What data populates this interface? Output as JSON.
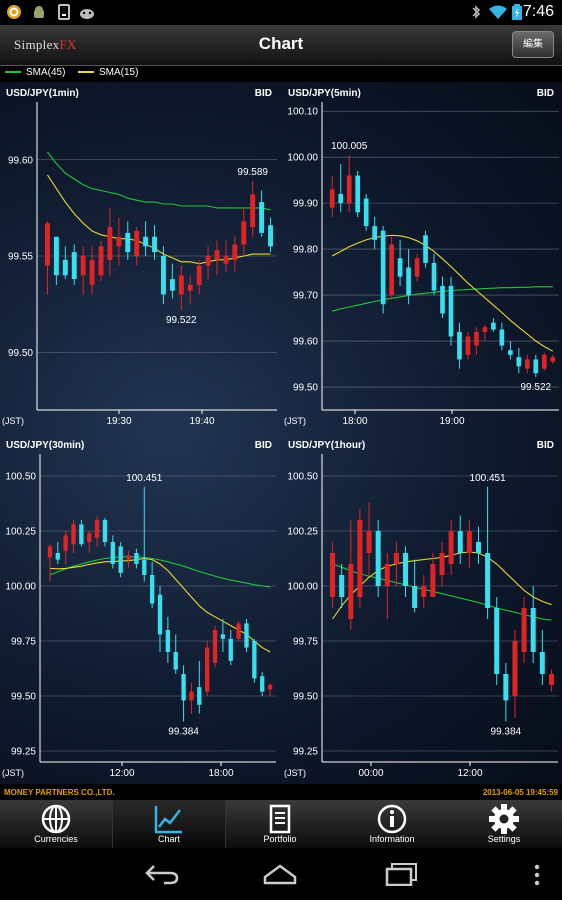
{
  "status_bar": {
    "time": "7:46"
  },
  "header": {
    "logo_main": "Simplex",
    "logo_accent": "FX",
    "title": "Chart",
    "edit_label": "編集"
  },
  "legend": [
    {
      "label": "SMA(45)",
      "color": "#22c43a"
    },
    {
      "label": "SMA(15)",
      "color": "#e8d82a"
    }
  ],
  "colors": {
    "up": "#e02424",
    "down": "#35e0f0",
    "sma45": "#22c43a",
    "sma15": "#e8d82a",
    "grid": "#8b93a6"
  },
  "charts": [
    {
      "title": "USD/JPY(1min)",
      "price_side": "BID",
      "tz_label": "(JST)",
      "y_ticks": [
        "99.60",
        "99.55",
        "99.50"
      ],
      "x_ticks": [
        "19:30",
        "19:40"
      ],
      "annotations": [
        {
          "label": "99.589"
        },
        {
          "label": "99.522"
        }
      ]
    },
    {
      "title": "USD/JPY(5min)",
      "price_side": "BID",
      "tz_label": "(JST)",
      "y_ticks": [
        "100.10",
        "100.00",
        "99.90",
        "99.80",
        "99.70",
        "99.60",
        "99.50"
      ],
      "x_ticks": [
        "18:00",
        "19:00"
      ],
      "annotations": [
        {
          "label": "100.005"
        },
        {
          "label": "99.522"
        }
      ]
    },
    {
      "title": "USD/JPY(30min)",
      "price_side": "BID",
      "tz_label": "(JST)",
      "y_ticks": [
        "100.50",
        "100.25",
        "100.00",
        "99.75",
        "99.50",
        "99.25"
      ],
      "x_ticks": [
        "12:00",
        "18:00"
      ],
      "annotations": [
        {
          "label": "100.451"
        },
        {
          "label": "99.384"
        }
      ]
    },
    {
      "title": "USD/JPY(1hour)",
      "price_side": "BID",
      "tz_label": "(JST)",
      "y_ticks": [
        "100.50",
        "100.25",
        "100.00",
        "99.75",
        "99.50",
        "99.25"
      ],
      "x_ticks": [
        "00:00",
        "12:00"
      ],
      "annotations": [
        {
          "label": "100.451"
        },
        {
          "label": "99.384"
        }
      ]
    }
  ],
  "chart_data": [
    {
      "type": "candlestick",
      "title": "USD/JPY(1min)",
      "ylim": [
        99.47,
        99.63
      ],
      "x_ticks": [
        "19:30",
        "19:40"
      ],
      "candles": [
        [
          99.545,
          99.568,
          99.53,
          99.567
        ],
        [
          99.56,
          99.56,
          99.535,
          99.54
        ],
        [
          99.548,
          99.555,
          99.538,
          99.54
        ],
        [
          99.552,
          99.556,
          99.535,
          99.538
        ],
        [
          99.54,
          99.555,
          99.53,
          99.55
        ],
        [
          99.535,
          99.555,
          99.53,
          99.548
        ],
        [
          99.54,
          99.558,
          99.537,
          99.555
        ],
        [
          99.548,
          99.575,
          99.54,
          99.565
        ],
        [
          99.555,
          99.57,
          99.545,
          99.56
        ],
        [
          99.562,
          99.568,
          99.548,
          99.552
        ],
        [
          99.55,
          99.565,
          99.545,
          99.563
        ],
        [
          99.56,
          99.568,
          99.55,
          99.555
        ],
        [
          99.56,
          99.566,
          99.548,
          99.552
        ],
        [
          99.55,
          99.555,
          99.525,
          99.53
        ],
        [
          99.538,
          99.546,
          99.528,
          99.532
        ],
        [
          99.53,
          99.545,
          99.522,
          99.54
        ],
        [
          99.532,
          99.54,
          99.525,
          99.535
        ],
        [
          99.535,
          99.548,
          99.53,
          99.545
        ],
        [
          99.545,
          99.555,
          99.538,
          99.55
        ],
        [
          99.548,
          99.558,
          99.54,
          99.553
        ],
        [
          99.546,
          99.558,
          99.542,
          99.55
        ],
        [
          99.548,
          99.56,
          99.542,
          99.556
        ],
        [
          99.556,
          99.575,
          99.55,
          99.568
        ],
        [
          99.565,
          99.589,
          99.56,
          99.582
        ],
        [
          99.578,
          99.584,
          99.56,
          99.562
        ],
        [
          99.566,
          99.57,
          99.552,
          99.555
        ]
      ],
      "sma45": [
        99.604,
        99.598,
        99.593,
        99.59,
        99.587,
        99.585,
        99.584,
        99.583,
        99.582,
        99.58,
        99.579,
        99.578,
        99.578,
        99.577,
        99.577,
        99.576,
        99.576,
        99.576,
        99.576,
        99.575,
        99.575,
        99.575,
        99.575,
        99.575,
        99.575,
        99.574
      ],
      "sma15": [
        99.592,
        99.585,
        99.578,
        99.572,
        99.567,
        99.563,
        99.561,
        99.56,
        99.559,
        99.559,
        99.558,
        99.556,
        99.554,
        99.551,
        99.549,
        99.547,
        99.547,
        99.546,
        99.547,
        99.548,
        99.548,
        99.549,
        99.55,
        99.551,
        99.551,
        99.551
      ],
      "annotation_values": [
        99.589,
        99.522
      ]
    },
    {
      "type": "candlestick",
      "title": "USD/JPY(5min)",
      "ylim": [
        99.45,
        100.12
      ],
      "x_ticks": [
        "18:00",
        "19:00"
      ],
      "candles": [
        [
          99.89,
          99.96,
          99.87,
          99.93
        ],
        [
          99.92,
          99.985,
          99.88,
          99.9
        ],
        [
          99.9,
          100.005,
          99.88,
          99.96
        ],
        [
          99.96,
          99.97,
          99.87,
          99.88
        ],
        [
          99.91,
          99.92,
          99.84,
          99.85
        ],
        [
          99.85,
          99.87,
          99.8,
          99.82
        ],
        [
          99.84,
          99.85,
          99.66,
          99.68
        ],
        [
          99.7,
          99.83,
          99.69,
          99.81
        ],
        [
          99.78,
          99.82,
          99.72,
          99.74
        ],
        [
          99.76,
          99.8,
          99.68,
          99.7
        ],
        [
          99.74,
          99.79,
          99.73,
          99.78
        ],
        [
          99.83,
          99.84,
          99.76,
          99.77
        ],
        [
          99.77,
          99.79,
          99.7,
          99.71
        ],
        [
          99.72,
          99.74,
          99.65,
          99.66
        ],
        [
          99.72,
          99.74,
          99.59,
          99.61
        ],
        [
          99.62,
          99.64,
          99.54,
          99.56
        ],
        [
          99.57,
          99.62,
          99.56,
          99.61
        ],
        [
          99.59,
          99.63,
          99.57,
          99.62
        ],
        [
          99.62,
          99.635,
          99.6,
          99.63
        ],
        [
          99.64,
          99.65,
          99.62,
          99.625
        ],
        [
          99.625,
          99.64,
          99.58,
          99.59
        ],
        [
          99.58,
          99.6,
          99.56,
          99.57
        ],
        [
          99.565,
          99.585,
          99.53,
          99.545
        ],
        [
          99.54,
          99.57,
          99.53,
          99.56
        ],
        [
          99.56,
          99.57,
          99.522,
          99.53
        ],
        [
          99.54,
          99.575,
          99.535,
          99.57
        ],
        [
          99.555,
          99.57,
          99.55,
          99.565
        ]
      ],
      "sma45": [
        99.665,
        99.67,
        99.674,
        99.678,
        99.682,
        99.686,
        99.69,
        99.693,
        99.696,
        99.699,
        99.702,
        99.704,
        99.706,
        99.708,
        99.71,
        99.711,
        99.712,
        99.713,
        99.714,
        99.715,
        99.716,
        99.716,
        99.717,
        99.717,
        99.718,
        99.718,
        99.718
      ],
      "sma15": [
        99.785,
        99.795,
        99.805,
        99.813,
        99.82,
        99.825,
        99.828,
        99.83,
        99.829,
        99.825,
        99.818,
        99.808,
        99.795,
        99.779,
        99.762,
        99.744,
        99.726,
        99.71,
        99.694,
        99.678,
        99.662,
        99.645,
        99.63,
        99.615,
        99.6,
        99.588,
        99.578
      ],
      "annotation_values": [
        100.005,
        99.522
      ]
    },
    {
      "type": "candlestick",
      "title": "USD/JPY(30min)",
      "ylim": [
        99.2,
        100.6
      ],
      "x_ticks": [
        "12:00",
        "18:00"
      ],
      "candles": [
        [
          100.13,
          100.19,
          100.02,
          100.18
        ],
        [
          100.15,
          100.2,
          100.1,
          100.12
        ],
        [
          100.16,
          100.25,
          100.1,
          100.23
        ],
        [
          100.19,
          100.3,
          100.15,
          100.28
        ],
        [
          100.28,
          100.3,
          100.18,
          100.19
        ],
        [
          100.2,
          100.25,
          100.15,
          100.24
        ],
        [
          100.22,
          100.32,
          100.18,
          100.3
        ],
        [
          100.3,
          100.31,
          100.18,
          100.2
        ],
        [
          100.2,
          100.23,
          100.08,
          100.1
        ],
        [
          100.18,
          100.2,
          100.04,
          100.06
        ],
        [
          100.12,
          100.16,
          100.08,
          100.14
        ],
        [
          100.15,
          100.17,
          100.08,
          100.1
        ],
        [
          100.12,
          100.451,
          100.02,
          100.05
        ],
        [
          100.05,
          100.11,
          99.9,
          99.92
        ],
        [
          99.96,
          100.0,
          99.7,
          99.78
        ],
        [
          99.8,
          99.86,
          99.65,
          99.7
        ],
        [
          99.7,
          99.78,
          99.6,
          99.62
        ],
        [
          99.6,
          99.64,
          99.384,
          99.48
        ],
        [
          99.48,
          99.56,
          99.42,
          99.52
        ],
        [
          99.54,
          99.66,
          99.42,
          99.46
        ],
        [
          99.52,
          99.75,
          99.5,
          99.72
        ],
        [
          99.65,
          99.82,
          99.63,
          99.8
        ],
        [
          99.78,
          99.85,
          99.7,
          99.76
        ],
        [
          99.76,
          99.8,
          99.64,
          99.66
        ],
        [
          99.76,
          99.84,
          99.75,
          99.83
        ],
        [
          99.83,
          99.85,
          99.7,
          99.72
        ],
        [
          99.75,
          99.76,
          99.56,
          99.58
        ],
        [
          99.59,
          99.61,
          99.5,
          99.52
        ],
        [
          99.53,
          99.56,
          99.5,
          99.55
        ]
      ],
      "sma45": [
        100.05,
        100.065,
        100.078,
        100.09,
        100.1,
        100.11,
        100.118,
        100.125,
        100.13,
        100.132,
        100.133,
        100.132,
        100.13,
        100.125,
        100.118,
        100.11,
        100.1,
        100.09,
        100.078,
        100.066,
        100.055,
        100.045,
        100.035,
        100.027,
        100.02,
        100.013,
        100.006,
        100.0,
        99.995
      ],
      "sma15": [
        100.08,
        100.078,
        100.08,
        100.085,
        100.09,
        100.098,
        100.105,
        100.11,
        100.112,
        100.113,
        100.115,
        100.12,
        100.125,
        100.12,
        100.1,
        100.07,
        100.03,
        99.99,
        99.95,
        99.91,
        99.88,
        99.86,
        99.84,
        99.82,
        99.8,
        99.78,
        99.75,
        99.72,
        99.7
      ],
      "annotation_values": [
        100.451,
        99.384
      ]
    },
    {
      "type": "candlestick",
      "title": "USD/JPY(1hour)",
      "ylim": [
        99.2,
        100.6
      ],
      "x_ticks": [
        "00:00",
        "12:00"
      ],
      "candles": [
        [
          99.95,
          100.2,
          99.9,
          100.15
        ],
        [
          100.05,
          100.1,
          99.9,
          99.95
        ],
        [
          99.85,
          100.3,
          99.8,
          100.1
        ],
        [
          99.95,
          100.35,
          99.9,
          100.3
        ],
        [
          100.15,
          100.38,
          100.05,
          100.25
        ],
        [
          100.25,
          100.3,
          99.95,
          100.0
        ],
        [
          100.0,
          100.15,
          99.85,
          100.1
        ],
        [
          100.1,
          100.2,
          100.0,
          100.15
        ],
        [
          100.15,
          100.18,
          99.95,
          100.0
        ],
        [
          100.0,
          100.12,
          99.88,
          99.9
        ],
        [
          99.95,
          100.05,
          99.9,
          100.0
        ],
        [
          99.95,
          100.15,
          99.95,
          100.1
        ],
        [
          100.05,
          100.2,
          100.0,
          100.15
        ],
        [
          100.1,
          100.3,
          100.05,
          100.25
        ],
        [
          100.25,
          100.32,
          100.1,
          100.15
        ],
        [
          100.15,
          100.3,
          100.08,
          100.25
        ],
        [
          100.2,
          100.27,
          100.1,
          100.15
        ],
        [
          100.15,
          100.451,
          99.85,
          99.9
        ],
        [
          99.9,
          99.95,
          99.55,
          99.6
        ],
        [
          99.6,
          99.65,
          99.384,
          99.48
        ],
        [
          99.5,
          99.8,
          99.4,
          99.75
        ],
        [
          99.7,
          99.95,
          99.65,
          99.9
        ],
        [
          99.9,
          100.0,
          99.65,
          99.7
        ],
        [
          99.7,
          99.8,
          99.55,
          99.6
        ],
        [
          99.55,
          99.62,
          99.52,
          99.6
        ]
      ],
      "sma45": [
        100.1,
        100.085,
        100.07,
        100.055,
        100.045,
        100.035,
        100.025,
        100.015,
        100.005,
        99.995,
        99.985,
        99.975,
        99.965,
        99.955,
        99.945,
        99.935,
        99.925,
        99.912,
        99.9,
        99.89,
        99.88,
        99.87,
        99.86,
        99.85,
        99.845
      ],
      "sma15": [
        99.85,
        99.91,
        99.96,
        100.0,
        100.04,
        100.07,
        100.09,
        100.1,
        100.11,
        100.115,
        100.12,
        100.125,
        100.13,
        100.14,
        100.15,
        100.155,
        100.15,
        100.13,
        100.1,
        100.06,
        100.02,
        99.98,
        99.95,
        99.93,
        99.915
      ],
      "annotation_values": [
        100.451,
        99.384
      ]
    }
  ],
  "footer": {
    "company": "MONEY PARTNERS CO.,LTD.",
    "timestamp": "2013-06-05 19:45:59"
  },
  "tabs": [
    {
      "label": "Currencies",
      "icon": "globe-icon"
    },
    {
      "label": "Chart",
      "icon": "chart-icon"
    },
    {
      "label": "Portfolio",
      "icon": "document-icon"
    },
    {
      "label": "Information",
      "icon": "info-icon"
    },
    {
      "label": "Settings",
      "icon": "gear-icon"
    }
  ],
  "nav": [
    {
      "icon": "back-icon"
    },
    {
      "icon": "home-icon"
    },
    {
      "icon": "recent-apps-icon"
    }
  ]
}
